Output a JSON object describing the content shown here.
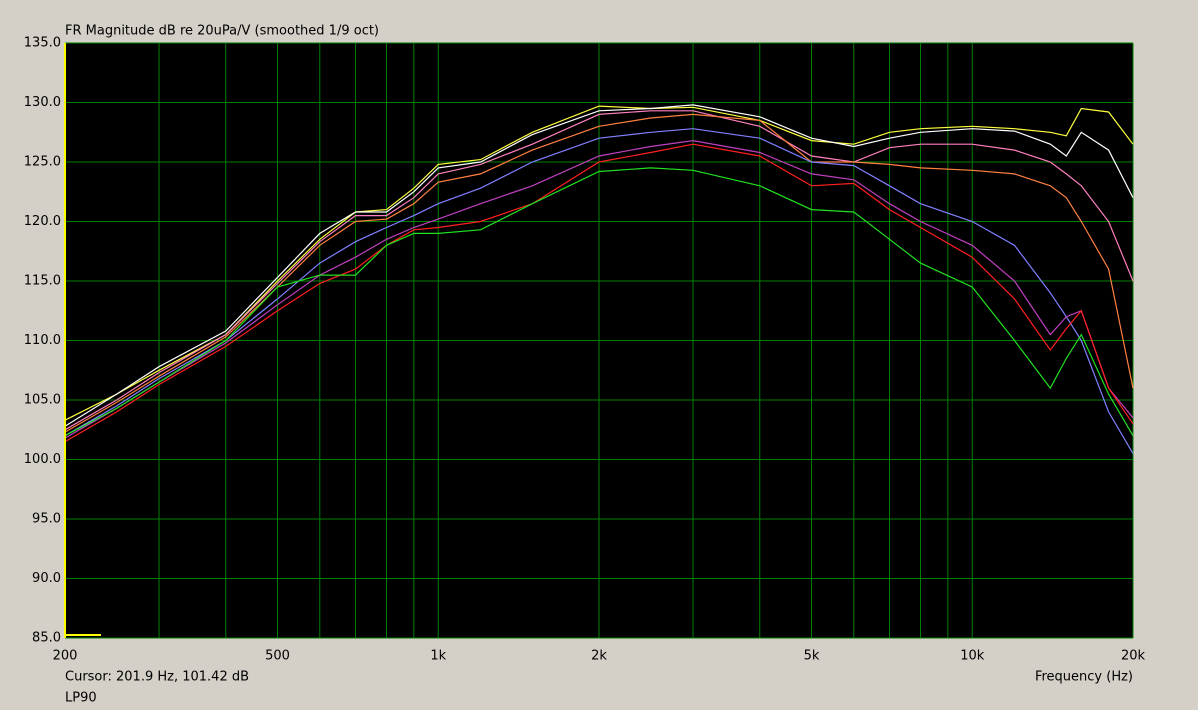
{
  "chart_data": {
    "type": "line",
    "title": "FR Magnitude dB re 20uPa/V (smoothed 1/9 oct)",
    "x_label": "Frequency (Hz)",
    "cursor": "Cursor: 201.9 Hz, 101.42 dB",
    "label": "LP90",
    "xscale": "log",
    "grid": true,
    "x": [
      200,
      250,
      300,
      400,
      500,
      600,
      700,
      800,
      900,
      1000,
      1200,
      1500,
      2000,
      2500,
      3000,
      4000,
      5000,
      6000,
      7000,
      8000,
      10000,
      12000,
      14000,
      15000,
      16000,
      18000,
      20000
    ],
    "series": [
      {
        "color": "#ffff40",
        "values": [
          103.3,
          105.5,
          107.5,
          110.5,
          115,
          118.5,
          120.8,
          121,
          122.8,
          124.8,
          125.2,
          127.5,
          129.7,
          129.5,
          129.6,
          128.5,
          126.8,
          126.5,
          127.5,
          127.8,
          128,
          127.8,
          127.5,
          127.2,
          129.5,
          129.2,
          126.5
        ]
      },
      {
        "color": "#ffffff",
        "values": [
          102.8,
          105.5,
          107.8,
          110.8,
          115.3,
          119,
          120.8,
          120.8,
          122.5,
          124.5,
          125,
          127.3,
          129.3,
          129.5,
          129.8,
          128.8,
          127,
          126.3,
          127,
          127.5,
          127.8,
          127.6,
          126.5,
          125.5,
          127.5,
          126,
          122
        ]
      },
      {
        "color": "#ff80c0",
        "values": [
          102.5,
          105,
          107.3,
          110.5,
          114.8,
          118.3,
          120.5,
          120.5,
          122,
          124,
          124.8,
          126.5,
          129,
          129.3,
          129.3,
          128,
          125.5,
          125,
          126.2,
          126.5,
          126.5,
          126,
          125,
          124,
          123,
          120,
          115
        ]
      },
      {
        "color": "#ff8040",
        "values": [
          102.3,
          104.8,
          107,
          110.3,
          114.5,
          118,
          120,
          120.2,
          121.5,
          123.3,
          124,
          126,
          128,
          128.7,
          129,
          128.5,
          125,
          125,
          124.8,
          124.5,
          124.3,
          124,
          123,
          122,
          120,
          116,
          106
        ]
      },
      {
        "color": "#8080ff",
        "values": [
          102,
          104.5,
          106.8,
          110,
          113.5,
          116.5,
          118.3,
          119.5,
          120.5,
          121.5,
          122.8,
          125,
          127,
          127.5,
          127.8,
          127,
          125,
          124.7,
          123,
          121.5,
          120,
          118,
          114,
          112,
          110,
          104,
          100.5
        ]
      },
      {
        "color": "#c040c0",
        "values": [
          101.8,
          104.3,
          106.5,
          109.8,
          113,
          115.5,
          117,
          118.5,
          119.5,
          120.2,
          121.5,
          123,
          125.5,
          126.3,
          126.8,
          125.8,
          124,
          123.5,
          121.5,
          120,
          118,
          115,
          110.5,
          112,
          112.5,
          106,
          103.5
        ]
      },
      {
        "color": "#ff2020",
        "values": [
          101.5,
          104,
          106.3,
          109.5,
          112.5,
          114.8,
          116,
          118,
          119.3,
          119.5,
          120,
          121.5,
          125,
          125.8,
          126.5,
          125.5,
          123,
          123.2,
          121,
          119.5,
          117,
          113.5,
          109.2,
          111,
          112.5,
          106,
          103
        ]
      },
      {
        "color": "#20e020",
        "values": [
          102,
          104.3,
          106.5,
          110,
          114.5,
          115.5,
          115.5,
          118,
          119,
          119,
          119.3,
          121.5,
          124.2,
          124.5,
          124.3,
          123,
          121,
          120.8,
          118.5,
          116.5,
          114.5,
          110,
          106,
          108.5,
          110.5,
          105.5,
          102
        ]
      }
    ],
    "xlim": [
      200,
      20000
    ],
    "xticks": [
      200,
      500,
      {
        "value": 1000,
        "label": "1k"
      },
      {
        "value": 2000,
        "label": "2k"
      },
      {
        "value": 5000,
        "label": "5k"
      },
      {
        "value": 10000,
        "label": "10k"
      },
      {
        "value": 20000,
        "label": "20k"
      }
    ],
    "x_minor_grid": [
      300,
      400,
      600,
      700,
      800,
      900,
      3000,
      4000,
      6000,
      7000,
      8000,
      9000
    ],
    "ylim": [
      85,
      135
    ],
    "yticks": [
      {
        "value": 85,
        "label": "85.0"
      },
      {
        "value": 90,
        "label": "90.0"
      },
      {
        "value": 95,
        "label": "95.0"
      },
      {
        "value": 100,
        "label": "100.0"
      },
      {
        "value": 105,
        "label": "105.0"
      },
      {
        "value": 110,
        "label": "110.0"
      },
      {
        "value": 115,
        "label": "115.0"
      },
      {
        "value": 120,
        "label": "120.0"
      },
      {
        "value": 125,
        "label": "125.0"
      },
      {
        "value": 130,
        "label": "130.0"
      },
      {
        "value": 135,
        "label": "135.0"
      }
    ]
  }
}
